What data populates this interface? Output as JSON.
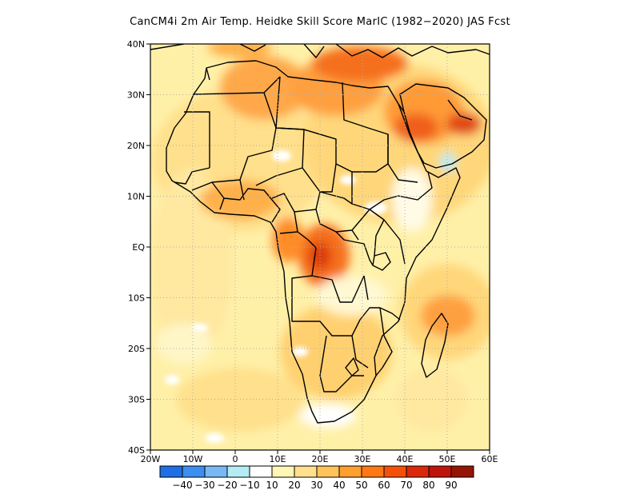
{
  "title": "CanCM4i  2m Air Temp. Heidke Skill Score MarIC (1982−2020) JAS Fcst",
  "map": {
    "projection": "lat-lon",
    "lon_range": [
      -20,
      60
    ],
    "lat_range": [
      -40,
      40
    ],
    "grid": "dotted",
    "lat_labels": [
      "40N",
      "30N",
      "20N",
      "10N",
      "EQ",
      "10S",
      "20S",
      "30S",
      "40S"
    ],
    "lon_labels": [
      "20W",
      "10W",
      "0",
      "10E",
      "20E",
      "30E",
      "40E",
      "50E",
      "60E"
    ]
  },
  "colorbar": {
    "labels": [
      "−40",
      "−30",
      "−20",
      "−10",
      "10",
      "20",
      "30",
      "40",
      "50",
      "60",
      "70",
      "80",
      "90"
    ],
    "colors": [
      "#1e6fe6",
      "#3c8ff0",
      "#78b8f5",
      "#b4ecf5",
      "#ffffff",
      "#fff5b4",
      "#ffe08c",
      "#ffc35a",
      "#ffa02d",
      "#ff7814",
      "#f5500a",
      "#dc280a",
      "#be140a",
      "#961405"
    ]
  }
}
